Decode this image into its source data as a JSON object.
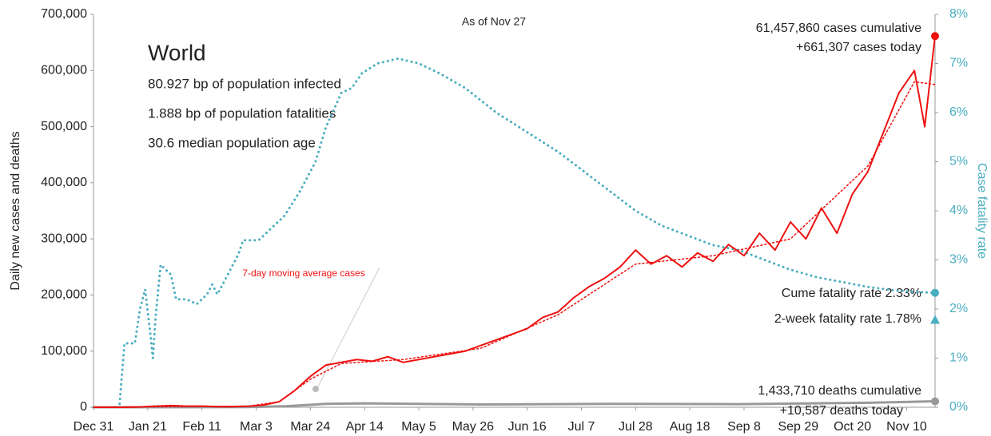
{
  "chart_data": {
    "type": "line",
    "subtitle": "As of Nov 27",
    "title": "World",
    "notes": [
      "80.927 bp of population infected",
      "1.888 bp of population fatalities",
      "30.6 median population age"
    ],
    "ylabel": "Daily new cases and deaths",
    "y2label": "Case fatality rate",
    "xlim": [
      0,
      326
    ],
    "xticks": [
      {
        "value": 0,
        "label": "Dec 31"
      },
      {
        "value": 21,
        "label": "Jan 21"
      },
      {
        "value": 42,
        "label": "Feb 11"
      },
      {
        "value": 63,
        "label": "Mar 3"
      },
      {
        "value": 84,
        "label": "Mar 24"
      },
      {
        "value": 105,
        "label": "Apr 14"
      },
      {
        "value": 126,
        "label": "May 5"
      },
      {
        "value": 147,
        "label": "May 26"
      },
      {
        "value": 168,
        "label": "Jun 16"
      },
      {
        "value": 189,
        "label": "Jul 7"
      },
      {
        "value": 210,
        "label": "Jul 28"
      },
      {
        "value": 231,
        "label": "Aug 18"
      },
      {
        "value": 252,
        "label": "Sep 8"
      },
      {
        "value": 273,
        "label": "Sep 29"
      },
      {
        "value": 294,
        "label": "Oct 20"
      },
      {
        "value": 315,
        "label": "Nov 10"
      }
    ],
    "ylim": [
      0,
      700000
    ],
    "yticks": [
      {
        "value": 0,
        "label": "0"
      },
      {
        "value": 100000,
        "label": "100,000"
      },
      {
        "value": 200000,
        "label": "200,000"
      },
      {
        "value": 300000,
        "label": "300,000"
      },
      {
        "value": 400000,
        "label": "400,000"
      },
      {
        "value": 500000,
        "label": "500,000"
      },
      {
        "value": 600000,
        "label": "600,000"
      },
      {
        "value": 700000,
        "label": "700,000"
      }
    ],
    "y2lim": [
      0,
      8
    ],
    "y2ticks": [
      {
        "value": 0,
        "label": "0%"
      },
      {
        "value": 1,
        "label": "1%"
      },
      {
        "value": 2,
        "label": "2%"
      },
      {
        "value": 3,
        "label": "3%"
      },
      {
        "value": 4,
        "label": "4%"
      },
      {
        "value": 5,
        "label": "5%"
      },
      {
        "value": 6,
        "label": "6%"
      },
      {
        "value": 7,
        "label": "7%"
      },
      {
        "value": 8,
        "label": "8%"
      }
    ],
    "series": [
      {
        "color": "#4aaec0",
        "style": "dotted",
        "width": 3,
        "axis": "y2",
        "end_marker": "circle",
        "x": [
          0,
          10,
          12,
          16,
          18,
          20,
          22,
          23,
          24,
          26,
          28,
          30,
          32,
          36,
          40,
          44,
          46,
          48,
          52,
          56,
          58,
          64,
          68,
          74,
          80,
          86,
          90,
          96,
          100,
          104,
          110,
          118,
          126,
          134,
          144,
          156,
          168,
          180,
          190,
          200,
          210,
          220,
          230,
          240,
          250,
          260,
          270,
          280,
          290,
          300,
          310,
          318,
          326
        ],
        "values": [
          0,
          0,
          1.3,
          1.3,
          2.0,
          2.4,
          1.5,
          1.0,
          1.8,
          2.9,
          2.8,
          2.7,
          2.2,
          2.2,
          2.1,
          2.3,
          2.5,
          2.3,
          2.7,
          3.1,
          3.4,
          3.4,
          3.6,
          3.9,
          4.4,
          5.0,
          5.7,
          6.4,
          6.5,
          6.8,
          7.0,
          7.1,
          7.0,
          6.8,
          6.5,
          6.0,
          5.6,
          5.2,
          4.8,
          4.4,
          4.0,
          3.7,
          3.5,
          3.3,
          3.2,
          3.0,
          2.8,
          2.65,
          2.55,
          2.45,
          2.38,
          2.35,
          2.33
        ]
      },
      {
        "color": "#999999",
        "style": "solid",
        "width": 3,
        "end_marker": "circle",
        "x": [
          0,
          60,
          75,
          90,
          105,
          150,
          200,
          250,
          300,
          326
        ],
        "values": [
          0,
          300,
          2000,
          6000,
          7000,
          5000,
          6000,
          5500,
          8000,
          10587
        ]
      },
      {
        "color": "#ee1111",
        "style": "solid",
        "width": 2,
        "end_marker": "circle",
        "x": [
          0,
          6,
          12,
          18,
          24,
          30,
          36,
          42,
          48,
          54,
          60,
          66,
          72,
          78,
          84,
          90,
          96,
          102,
          108,
          114,
          120,
          126,
          132,
          138,
          144,
          150,
          156,
          162,
          168,
          174,
          180,
          186,
          192,
          198,
          204,
          210,
          216,
          222,
          228,
          234,
          240,
          246,
          252,
          258,
          264,
          270,
          276,
          282,
          288,
          294,
          300,
          306,
          312,
          318,
          322,
          326
        ],
        "values": [
          0,
          0,
          0,
          500,
          2000,
          3000,
          2000,
          2000,
          1000,
          1000,
          2000,
          4000,
          10000,
          30000,
          55000,
          75000,
          80000,
          85000,
          82000,
          90000,
          80000,
          85000,
          90000,
          95000,
          100000,
          110000,
          120000,
          130000,
          140000,
          160000,
          170000,
          195000,
          215000,
          230000,
          250000,
          280000,
          255000,
          270000,
          250000,
          275000,
          260000,
          290000,
          270000,
          310000,
          280000,
          330000,
          300000,
          355000,
          310000,
          380000,
          420000,
          490000,
          560000,
          600000,
          500000,
          661307
        ]
      },
      {
        "name": "7-day moving average cases",
        "color": "#ee1111",
        "style": "dotted",
        "width": 1.5,
        "x": [
          0,
          60,
          72,
          84,
          96,
          120,
          150,
          180,
          210,
          240,
          270,
          300,
          318,
          326
        ],
        "values": [
          0,
          2000,
          10000,
          50000,
          78000,
          85000,
          105000,
          165000,
          255000,
          270000,
          300000,
          430000,
          580000,
          575000
        ]
      }
    ],
    "points": [
      {
        "value": 1.78,
        "axis": "y2",
        "marker": "triangle",
        "color": "#4aaec0"
      }
    ],
    "annotations": [
      "61,457,860 cases cumulative",
      "+661,307 cases today",
      "Cume fatality rate 2.33%",
      "2-week fatality rate 1.78%",
      "1,433,710 deaths cumulative",
      "+10,587 deaths today"
    ]
  }
}
